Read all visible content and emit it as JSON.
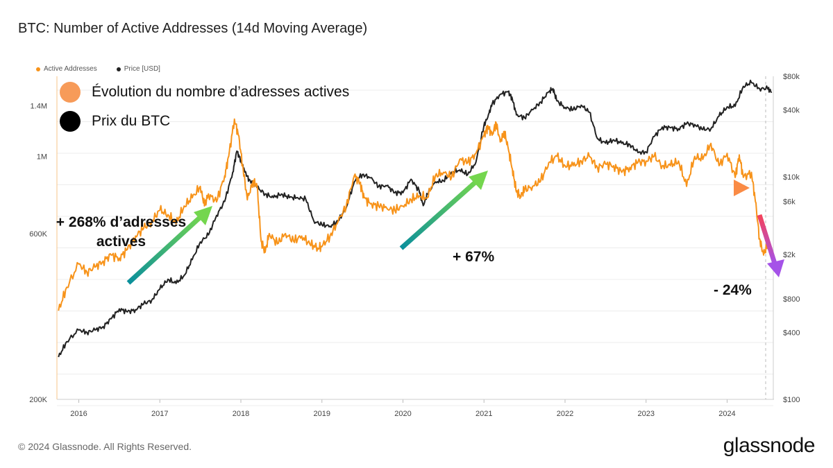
{
  "title": "BTC: Number of Active Addresses (14d Moving Average)",
  "legend_small": {
    "items": [
      {
        "label": "Active Addresses",
        "color": "#f7931a"
      },
      {
        "label": "Price [USD]",
        "color": "#222222"
      }
    ]
  },
  "legend_big": {
    "items": [
      {
        "label": "Évolution du nombre d’adresses actives",
        "color": "#f79b59"
      },
      {
        "label": "Prix du BTC",
        "color": "#000000"
      }
    ]
  },
  "annotations": {
    "a1_line1": "+ 268% d’adresses",
    "a1_line2": "actives",
    "a2": "+ 67%",
    "a3": "- 24%"
  },
  "footer": "© 2024 Glassnode. All Rights Reserved.",
  "logo": "glassnode",
  "colors": {
    "orange": "#f7931a",
    "price": "#222222"
  },
  "chart_data": {
    "type": "line",
    "title": "BTC: Number of Active Addresses (14d Moving Average)",
    "x_tick_labels": [
      "2016",
      "2017",
      "2018",
      "2019",
      "2020",
      "2021",
      "2022",
      "2023",
      "2024"
    ],
    "x_range": [
      2015.73,
      2024.57
    ],
    "left_axis": {
      "scale": "log",
      "tick_labels": [
        "200K",
        "600K",
        "1M",
        "1.4M"
      ],
      "tick_values": [
        200000,
        600000,
        1000000,
        1400000
      ],
      "range": [
        200000,
        1700000
      ]
    },
    "right_axis": {
      "scale": "log",
      "tick_labels": [
        "$100",
        "$400",
        "$800",
        "$2k",
        "$6k",
        "$10k",
        "$40k",
        "$80k"
      ],
      "tick_values": [
        100,
        400,
        800,
        2000,
        6000,
        10000,
        40000,
        80000
      ],
      "range": [
        100,
        80000
      ]
    },
    "series": [
      {
        "name": "Active Addresses",
        "axis": "left",
        "color": "#f7931a",
        "x": [
          2015.75,
          2015.85,
          2016.0,
          2016.1,
          2016.2,
          2016.3,
          2016.4,
          2016.5,
          2016.6,
          2016.7,
          2016.8,
          2016.9,
          2017.0,
          2017.1,
          2017.2,
          2017.3,
          2017.4,
          2017.5,
          2017.55,
          2017.6,
          2017.7,
          2017.8,
          2017.85,
          2017.92,
          2017.97,
          2018.02,
          2018.08,
          2018.15,
          2018.2,
          2018.25,
          2018.3,
          2018.35,
          2018.45,
          2018.55,
          2018.65,
          2018.75,
          2018.85,
          2018.95,
          2019.0,
          2019.1,
          2019.2,
          2019.3,
          2019.4,
          2019.47,
          2019.52,
          2019.6,
          2019.7,
          2019.8,
          2019.9,
          2020.0,
          2020.1,
          2020.2,
          2020.3,
          2020.4,
          2020.5,
          2020.6,
          2020.7,
          2020.8,
          2020.9,
          2021.0,
          2021.05,
          2021.1,
          2021.15,
          2021.2,
          2021.25,
          2021.3,
          2021.35,
          2021.4,
          2021.45,
          2021.5,
          2021.6,
          2021.7,
          2021.8,
          2021.9,
          2022.0,
          2022.1,
          2022.2,
          2022.3,
          2022.4,
          2022.5,
          2022.6,
          2022.7,
          2022.8,
          2022.9,
          2023.0,
          2023.1,
          2023.2,
          2023.3,
          2023.4,
          2023.5,
          2023.6,
          2023.7,
          2023.8,
          2023.9,
          2024.0,
          2024.1,
          2024.15,
          2024.2,
          2024.3,
          2024.35,
          2024.4,
          2024.45,
          2024.5
        ],
        "y": [
          360000,
          420000,
          490000,
          465000,
          480000,
          500000,
          520000,
          510000,
          540000,
          590000,
          620000,
          650000,
          700000,
          680000,
          640000,
          720000,
          760000,
          820000,
          720000,
          780000,
          740000,
          880000,
          1000000,
          1280000,
          1150000,
          950000,
          750000,
          850000,
          820000,
          570000,
          530000,
          600000,
          560000,
          600000,
          570000,
          590000,
          560000,
          545000,
          550000,
          590000,
          650000,
          720000,
          880000,
          840000,
          760000,
          730000,
          720000,
          710000,
          700000,
          720000,
          750000,
          770000,
          760000,
          880000,
          900000,
          870000,
          980000,
          960000,
          1020000,
          1150000,
          1220000,
          1150000,
          1250000,
          1100000,
          1180000,
          1050000,
          920000,
          790000,
          770000,
          800000,
          820000,
          850000,
          960000,
          1000000,
          940000,
          940000,
          970000,
          1000000,
          930000,
          950000,
          940000,
          900000,
          930000,
          960000,
          970000,
          1000000,
          940000,
          940000,
          970000,
          820000,
          1000000,
          980000,
          1090000,
          940000,
          1020000,
          870000,
          1010000,
          870000,
          900000,
          740000,
          580000,
          520000,
          560000
        ]
      },
      {
        "name": "Price [USD]",
        "axis": "right",
        "color": "#222222",
        "x": [
          2015.75,
          2015.85,
          2016.0,
          2016.1,
          2016.2,
          2016.3,
          2016.4,
          2016.5,
          2016.6,
          2016.7,
          2016.8,
          2016.9,
          2017.0,
          2017.1,
          2017.2,
          2017.3,
          2017.4,
          2017.5,
          2017.6,
          2017.7,
          2017.8,
          2017.9,
          2017.95,
          2018.0,
          2018.05,
          2018.1,
          2018.2,
          2018.3,
          2018.4,
          2018.5,
          2018.6,
          2018.7,
          2018.8,
          2018.9,
          2019.0,
          2019.1,
          2019.2,
          2019.3,
          2019.4,
          2019.5,
          2019.6,
          2019.7,
          2019.8,
          2019.9,
          2020.0,
          2020.1,
          2020.2,
          2020.25,
          2020.3,
          2020.4,
          2020.5,
          2020.6,
          2020.7,
          2020.8,
          2020.9,
          2021.0,
          2021.05,
          2021.1,
          2021.2,
          2021.3,
          2021.35,
          2021.4,
          2021.5,
          2021.6,
          2021.7,
          2021.8,
          2021.85,
          2021.9,
          2022.0,
          2022.1,
          2022.2,
          2022.3,
          2022.4,
          2022.5,
          2022.6,
          2022.7,
          2022.8,
          2022.9,
          2023.0,
          2023.1,
          2023.2,
          2023.3,
          2023.4,
          2023.5,
          2023.6,
          2023.7,
          2023.8,
          2023.9,
          2024.0,
          2024.1,
          2024.2,
          2024.3,
          2024.4,
          2024.5,
          2024.55
        ],
        "y": [
          240,
          330,
          420,
          400,
          420,
          450,
          530,
          650,
          610,
          640,
          720,
          780,
          980,
          1200,
          1100,
          1300,
          1800,
          2600,
          3000,
          4500,
          6000,
          11000,
          17000,
          14000,
          11000,
          9500,
          8000,
          7000,
          6500,
          7000,
          6500,
          6500,
          6300,
          4000,
          3700,
          3600,
          4000,
          5300,
          9000,
          10500,
          9800,
          8200,
          8300,
          7200,
          7200,
          9500,
          7500,
          5500,
          7000,
          9000,
          9200,
          11000,
          11500,
          10500,
          13500,
          29000,
          35000,
          45000,
          55000,
          58000,
          50000,
          36000,
          34000,
          40000,
          47000,
          58000,
          62000,
          48000,
          42000,
          40000,
          44000,
          38000,
          22000,
          20000,
          21500,
          20000,
          19500,
          16500,
          16700,
          23000,
          28000,
          27500,
          27000,
          30000,
          29500,
          26500,
          27000,
          35000,
          42500,
          43000,
          65000,
          70000,
          62000,
          62000,
          58000
        ]
      }
    ]
  }
}
